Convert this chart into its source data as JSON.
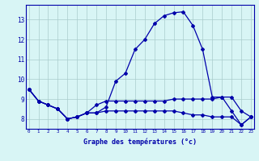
{
  "xlabel": "Graphe des températures (°c)",
  "hours": [
    0,
    1,
    2,
    3,
    4,
    5,
    6,
    7,
    8,
    9,
    10,
    11,
    12,
    13,
    14,
    15,
    16,
    17,
    18,
    19,
    20,
    21,
    22,
    23
  ],
  "line1": [
    9.5,
    8.9,
    8.7,
    8.5,
    8.0,
    8.1,
    8.3,
    8.3,
    8.6,
    9.9,
    10.3,
    11.5,
    12.0,
    12.8,
    13.2,
    13.35,
    13.4,
    12.7,
    11.5,
    9.1,
    9.1,
    8.4,
    7.7,
    8.1
  ],
  "line2": [
    9.5,
    8.9,
    8.7,
    8.5,
    8.0,
    8.1,
    8.3,
    8.7,
    8.9,
    8.9,
    8.9,
    8.9,
    8.9,
    8.9,
    8.9,
    9.0,
    9.0,
    9.0,
    9.0,
    9.0,
    9.1,
    9.1,
    8.4,
    8.1
  ],
  "line3": [
    9.5,
    8.9,
    8.7,
    8.5,
    8.0,
    8.1,
    8.3,
    8.3,
    8.4,
    8.4,
    8.4,
    8.4,
    8.4,
    8.4,
    8.4,
    8.4,
    8.3,
    8.2,
    8.2,
    8.1,
    8.1,
    8.1,
    7.7,
    8.1
  ],
  "line_color": "#0000aa",
  "bg_color": "#d8f5f5",
  "grid_color": "#aacccc",
  "ylim": [
    7.5,
    13.75
  ],
  "yticks": [
    8,
    9,
    10,
    11,
    12,
    13
  ],
  "xticks": [
    0,
    1,
    2,
    3,
    4,
    5,
    6,
    7,
    8,
    9,
    10,
    11,
    12,
    13,
    14,
    15,
    16,
    17,
    18,
    19,
    20,
    21,
    22,
    23
  ]
}
